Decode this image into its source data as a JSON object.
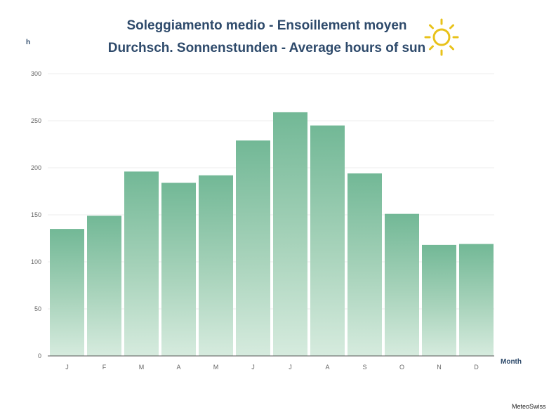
{
  "title_line1": "Soleggiamento medio - Ensoillement moyen",
  "title_line2": "Durchsch. Sonnenstunden - Average hours of sun",
  "y_unit": "h",
  "x_unit": "Month",
  "credit": "MeteoSwiss",
  "sun_icon": "sun-icon",
  "colors": {
    "bar_top": "#72b896",
    "bar_bottom": "#d6ebde",
    "sun": "#e8c21a",
    "title": "#2e4a6b"
  },
  "chart_data": {
    "type": "bar",
    "categories": [
      "J",
      "F",
      "M",
      "A",
      "M",
      "J",
      "J",
      "A",
      "S",
      "O",
      "N",
      "D"
    ],
    "values": [
      135,
      149,
      196,
      184,
      192,
      229,
      259,
      245,
      194,
      151,
      118,
      119
    ],
    "ylim": [
      0,
      300
    ],
    "yticks": [
      0,
      50,
      100,
      150,
      200,
      250,
      300
    ],
    "xlabel": "Month",
    "ylabel": "h",
    "grid": true
  }
}
